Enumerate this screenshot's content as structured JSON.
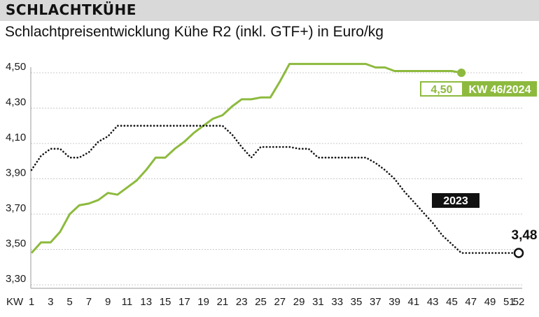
{
  "header": {
    "label": "SCHLACHTKÜHE"
  },
  "chart_data": {
    "type": "line",
    "title": "Schlachtpreisentwicklung Kühe R2 (inkl. GTF+) in Euro/kg",
    "xlabel": "KW",
    "ylabel": "",
    "xlim": [
      1,
      52
    ],
    "ylim": [
      3.3,
      4.55
    ],
    "grid": true,
    "x_ticks": [
      "1",
      "3",
      "5",
      "7",
      "9",
      "11",
      "13",
      "15",
      "17",
      "19",
      "21",
      "23",
      "25",
      "27",
      "29",
      "31",
      "33",
      "35",
      "37",
      "39",
      "41",
      "43",
      "45",
      "47",
      "49",
      "51",
      "52"
    ],
    "y_ticks": [
      "3,30",
      "3,50",
      "3,70",
      "3,90",
      "4,10",
      "4,30",
      "4,50"
    ],
    "y_tick_values": [
      3.3,
      3.5,
      3.7,
      3.9,
      4.1,
      4.3,
      4.5
    ],
    "series": [
      {
        "name": "KW 46/2024",
        "color": "#8dba3e",
        "style": "solid",
        "x": [
          1,
          2,
          3,
          4,
          5,
          6,
          7,
          8,
          9,
          10,
          11,
          12,
          13,
          14,
          15,
          16,
          17,
          18,
          19,
          20,
          21,
          22,
          23,
          24,
          25,
          26,
          27,
          28,
          29,
          30,
          31,
          32,
          33,
          34,
          35,
          36,
          37,
          38,
          39,
          40,
          41,
          42,
          43,
          44,
          45,
          46
        ],
        "values": [
          3.48,
          3.54,
          3.54,
          3.6,
          3.7,
          3.75,
          3.76,
          3.78,
          3.82,
          3.81,
          3.85,
          3.89,
          3.95,
          4.02,
          4.02,
          4.07,
          4.11,
          4.16,
          4.2,
          4.24,
          4.26,
          4.31,
          4.35,
          4.35,
          4.36,
          4.36,
          4.45,
          4.55,
          4.55,
          4.55,
          4.55,
          4.55,
          4.55,
          4.55,
          4.55,
          4.55,
          4.53,
          4.53,
          4.51,
          4.51,
          4.51,
          4.51,
          4.51,
          4.51,
          4.51,
          4.5
        ],
        "end_label_value": "4,50",
        "end_label_text": "KW 46/2024"
      },
      {
        "name": "2023",
        "color": "#111111",
        "style": "dotted",
        "x": [
          1,
          2,
          3,
          4,
          5,
          6,
          7,
          8,
          9,
          10,
          11,
          12,
          13,
          14,
          15,
          16,
          17,
          18,
          19,
          20,
          21,
          22,
          23,
          24,
          25,
          26,
          27,
          28,
          29,
          30,
          31,
          32,
          33,
          34,
          35,
          36,
          37,
          38,
          39,
          40,
          41,
          42,
          43,
          44,
          45,
          46,
          47,
          48,
          49,
          50,
          51,
          52
        ],
        "values": [
          3.95,
          4.03,
          4.07,
          4.07,
          4.02,
          4.02,
          4.05,
          4.11,
          4.14,
          4.2,
          4.2,
          4.2,
          4.2,
          4.2,
          4.2,
          4.2,
          4.2,
          4.2,
          4.2,
          4.2,
          4.2,
          4.15,
          4.08,
          4.02,
          4.08,
          4.08,
          4.08,
          4.08,
          4.07,
          4.07,
          4.02,
          4.02,
          4.02,
          4.02,
          4.02,
          4.02,
          3.99,
          3.95,
          3.9,
          3.83,
          3.77,
          3.71,
          3.65,
          3.58,
          3.53,
          3.48,
          3.48,
          3.48,
          3.48,
          3.48,
          3.48,
          3.48
        ],
        "end_label_value": "3,48",
        "label_text": "2023"
      }
    ]
  }
}
